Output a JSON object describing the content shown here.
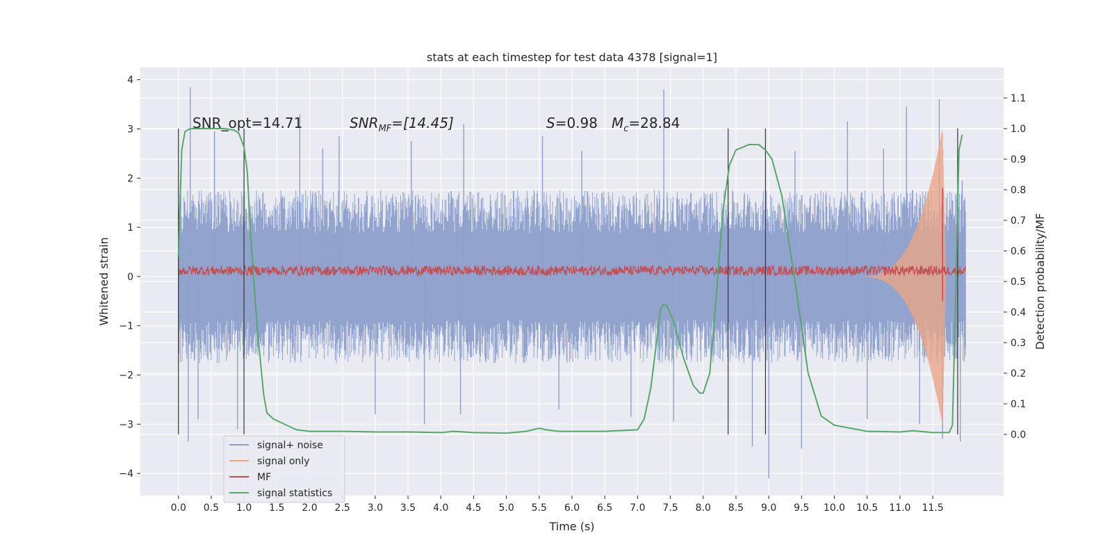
{
  "chart_data": {
    "type": "line",
    "title": "stats at each timestep for test data 4378 [signal=1]",
    "xlabel": "Time (s)",
    "ylabel": "Whitened strain",
    "ylabel_right": "Detection probability/MF",
    "xlim": [
      -0.58,
      12.58
    ],
    "ylim": [
      -4.45,
      4.25
    ],
    "ylim_right": [
      -0.2,
      1.2
    ],
    "x_ticks": [
      "0.0",
      "0.5",
      "1.0",
      "1.5",
      "2.0",
      "2.5",
      "3.0",
      "3.5",
      "4.0",
      "4.5",
      "5.0",
      "5.5",
      "6.0",
      "6.5",
      "7.0",
      "7.5",
      "8.0",
      "8.5",
      "9.0",
      "9.5",
      "10.0",
      "10.5",
      "11.0",
      "11.5"
    ],
    "y_ticks": [
      "4",
      "3",
      "2",
      "1",
      "0",
      "−1",
      "−2",
      "−3",
      "−4"
    ],
    "y_right_ticks": [
      "1.1",
      "1.0",
      "0.9",
      "0.8",
      "0.7",
      "0.6",
      "0.5",
      "0.4",
      "0.3",
      "0.2",
      "0.1",
      "0.0"
    ],
    "grid": true,
    "annotations": [
      {
        "text": "SNR_opt=14.71",
        "x": 0.2,
        "y": 3.1
      },
      {
        "text": "SNR",
        "sub": "MF",
        "rest": "=[14.45]",
        "x": 2.6,
        "y": 3.1
      },
      {
        "text": "S",
        "rest": "=0.98",
        "x": 5.6,
        "y": 3.1
      },
      {
        "text": "M",
        "sub": "c",
        "rest": "=28.84",
        "x": 6.6,
        "y": 3.1
      }
    ],
    "vertical_markers": [
      0.0,
      1.0,
      8.38,
      8.95,
      11.88
    ],
    "noise_envelope": {
      "x": [
        0.0,
        12.0
      ],
      "upper_typical": 1.6,
      "lower_typical": -1.6,
      "spikes": [
        {
          "x": 0.18,
          "y": 3.85
        },
        {
          "x": 0.15,
          "y": -3.35
        },
        {
          "x": 0.55,
          "y": 2.95
        },
        {
          "x": 0.3,
          "y": -2.9
        },
        {
          "x": 1.85,
          "y": 3.3
        },
        {
          "x": 0.9,
          "y": -3.1
        },
        {
          "x": 2.2,
          "y": 2.6
        },
        {
          "x": 3.0,
          "y": -2.8
        },
        {
          "x": 2.45,
          "y": 2.85
        },
        {
          "x": 3.75,
          "y": -3.0
        },
        {
          "x": 3.55,
          "y": 2.75
        },
        {
          "x": 4.3,
          "y": -2.8
        },
        {
          "x": 4.35,
          "y": 3.1
        },
        {
          "x": 5.8,
          "y": -2.7
        },
        {
          "x": 5.55,
          "y": 2.85
        },
        {
          "x": 6.9,
          "y": -2.85
        },
        {
          "x": 6.15,
          "y": 2.55
        },
        {
          "x": 7.55,
          "y": -2.95
        },
        {
          "x": 7.4,
          "y": 3.8
        },
        {
          "x": 8.75,
          "y": -3.45
        },
        {
          "x": 9.0,
          "y": -4.1
        },
        {
          "x": 9.4,
          "y": 2.55
        },
        {
          "x": 9.5,
          "y": -3.5
        },
        {
          "x": 10.2,
          "y": 3.15
        },
        {
          "x": 10.5,
          "y": -2.9
        },
        {
          "x": 10.75,
          "y": 2.6
        },
        {
          "x": 11.1,
          "y": 3.45
        },
        {
          "x": 11.3,
          "y": -3.0
        },
        {
          "x": 11.6,
          "y": 3.6
        },
        {
          "x": 11.65,
          "y": -3.3
        },
        {
          "x": 11.92,
          "y": -3.35
        },
        {
          "x": 11.95,
          "y": 1.95
        }
      ]
    },
    "signal_statistics": {
      "x": [
        0.0,
        0.05,
        0.1,
        0.15,
        0.2,
        0.3,
        0.5,
        0.7,
        0.85,
        0.92,
        1.0,
        1.05,
        1.1,
        1.2,
        1.3,
        1.35,
        1.45,
        1.6,
        1.8,
        2.0,
        2.5,
        3.0,
        3.5,
        4.0,
        4.2,
        4.5,
        5.0,
        5.3,
        5.5,
        5.6,
        5.8,
        6.0,
        6.5,
        7.0,
        7.1,
        7.2,
        7.3,
        7.35,
        7.4,
        7.45,
        7.55,
        7.7,
        7.85,
        7.95,
        8.0,
        8.1,
        8.2,
        8.3,
        8.4,
        8.5,
        8.7,
        8.85,
        8.95,
        9.05,
        9.2,
        9.4,
        9.6,
        9.8,
        10.0,
        10.5,
        11.0,
        11.2,
        11.5,
        11.75,
        11.8,
        11.85,
        11.9,
        11.95
      ],
      "y": [
        0.58,
        0.93,
        0.99,
        0.997,
        1.0,
        1.0,
        1.0,
        1.0,
        0.995,
        0.985,
        0.94,
        0.86,
        0.65,
        0.35,
        0.13,
        0.07,
        0.05,
        0.035,
        0.015,
        0.01,
        0.01,
        0.008,
        0.008,
        0.006,
        0.01,
        0.006,
        0.004,
        0.01,
        0.02,
        0.015,
        0.01,
        0.01,
        0.01,
        0.015,
        0.05,
        0.15,
        0.32,
        0.41,
        0.425,
        0.42,
        0.37,
        0.25,
        0.16,
        0.135,
        0.135,
        0.2,
        0.45,
        0.73,
        0.88,
        0.93,
        0.948,
        0.947,
        0.93,
        0.9,
        0.78,
        0.5,
        0.2,
        0.06,
        0.03,
        0.01,
        0.008,
        0.012,
        0.006,
        0.006,
        0.03,
        0.45,
        0.93,
        0.98
      ]
    },
    "signal_only": {
      "x_start": 10.3,
      "x_peak": 11.65,
      "peak_amplitude": 3.0,
      "x_end": 11.7
    },
    "mf_trace": {
      "x": [
        0.0,
        12.0
      ],
      "center": 0.12,
      "jitter": 0.1,
      "spike_x": 11.65,
      "spike_y": 1.8
    },
    "legend": {
      "placement": "lower-left",
      "entries": [
        {
          "label": "signal+ noise",
          "color": "#8da0cb"
        },
        {
          "label": "signal only",
          "color": "#e8a588"
        },
        {
          "label": "MF",
          "color": "#c44e52"
        },
        {
          "label": "signal statistics",
          "color": "#55a868"
        }
      ]
    },
    "colors": {
      "background": "#eaeaf2",
      "grid": "#ffffff",
      "noise": "#8da0cb",
      "signal_only": "#e8a588",
      "mf": "#c44e52",
      "statistics": "#55a868",
      "marker": "#333333"
    }
  }
}
